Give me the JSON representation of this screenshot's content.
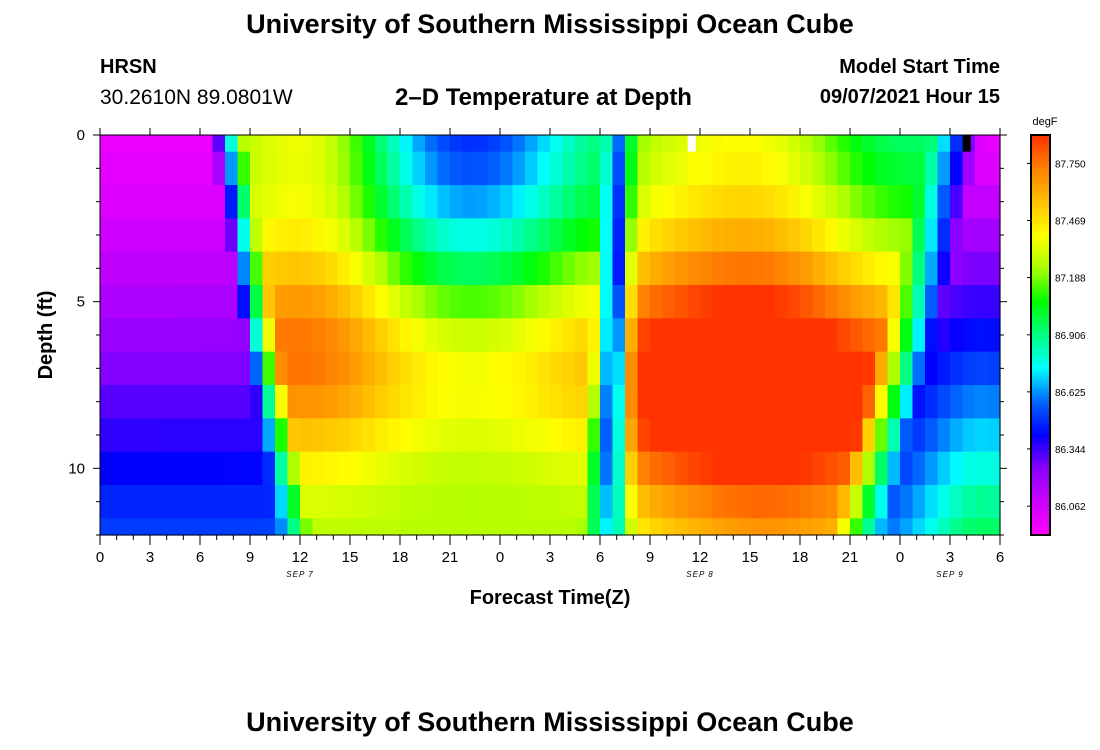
{
  "header": {
    "title": "University of Southern Mississippi Ocean Cube",
    "station": "HRSN",
    "coords": "30.2610N  89.0801W",
    "chart_title": "2–D Temperature at Depth",
    "model_label": "Model Start Time",
    "model_time": "09/07/2021 Hour 15"
  },
  "footer": {
    "title": "University of Southern Mississippi Ocean Cube"
  },
  "colors": {
    "scale": [
      "#ff00ff",
      "#cc00ff",
      "#8a00ff",
      "#0000ff",
      "#0068ff",
      "#00ffff",
      "#00ff80",
      "#00ff00",
      "#aaff00",
      "#ffff00",
      "#ffc000",
      "#ff8000",
      "#ff3200"
    ]
  },
  "chart_data": {
    "type": "heatmap",
    "title": "2–D Temperature at Depth",
    "xlabel": "Forecast Time(Z)",
    "ylabel": "Depth (ft)",
    "xlim": [
      0,
      54
    ],
    "ylim": [
      0,
      12
    ],
    "x_ticks": [
      0,
      3,
      6,
      9,
      12,
      15,
      18,
      21,
      24,
      27,
      30,
      33,
      36,
      39,
      42,
      45,
      48,
      51,
      54
    ],
    "x_tick_labels": [
      "0",
      "3",
      "6",
      "9",
      "12",
      "15",
      "18",
      "21",
      "0",
      "3",
      "6",
      "9",
      "12",
      "15",
      "18",
      "21",
      "0",
      "3",
      "6"
    ],
    "y_ticks": [
      0,
      5,
      10
    ],
    "y_tick_labels": [
      "0",
      "5",
      "10"
    ],
    "date_labels": [
      {
        "x": 12,
        "text": "SEP 7"
      },
      {
        "x": 36,
        "text": "SEP 8"
      },
      {
        "x": 51,
        "text": "SEP 9"
      }
    ],
    "colorbar": {
      "unit": "degF",
      "min": 85.92,
      "max": 87.89,
      "tick_labels": [
        "87.750",
        "87.469",
        "87.188",
        "86.906",
        "86.625",
        "86.344",
        "86.062"
      ]
    },
    "depth_levels": [
      0,
      0.5,
      1.5,
      2.5,
      3.5,
      4.5,
      5.5,
      6.5,
      7.5,
      8.5,
      9.5,
      10.5,
      11.5,
      12
    ],
    "values_description_keys": [
      "time_hours",
      "depth_ft",
      "temperature_degF"
    ],
    "temperature_features": [
      {
        "name": "day1 warm core",
        "time_peak": 16,
        "depth_peak": 7,
        "value": 87.65
      },
      {
        "name": "day2 warm core",
        "time_peak": 41,
        "depth_peak": 7,
        "value": 87.85
      },
      {
        "name": "cold minimum",
        "time_peak": 31,
        "depth_peak": 7,
        "value": 86.3
      },
      {
        "name": "surface cold",
        "time_peak": 0,
        "depth_peak": 0,
        "value": 85.96
      }
    ],
    "markers": [
      {
        "time": 35.5,
        "depth_range": [
          0,
          0.5
        ],
        "color": "#ffffff"
      },
      {
        "time": 52.0,
        "depth_range": [
          0,
          0.5
        ],
        "color": "#000000"
      }
    ]
  }
}
